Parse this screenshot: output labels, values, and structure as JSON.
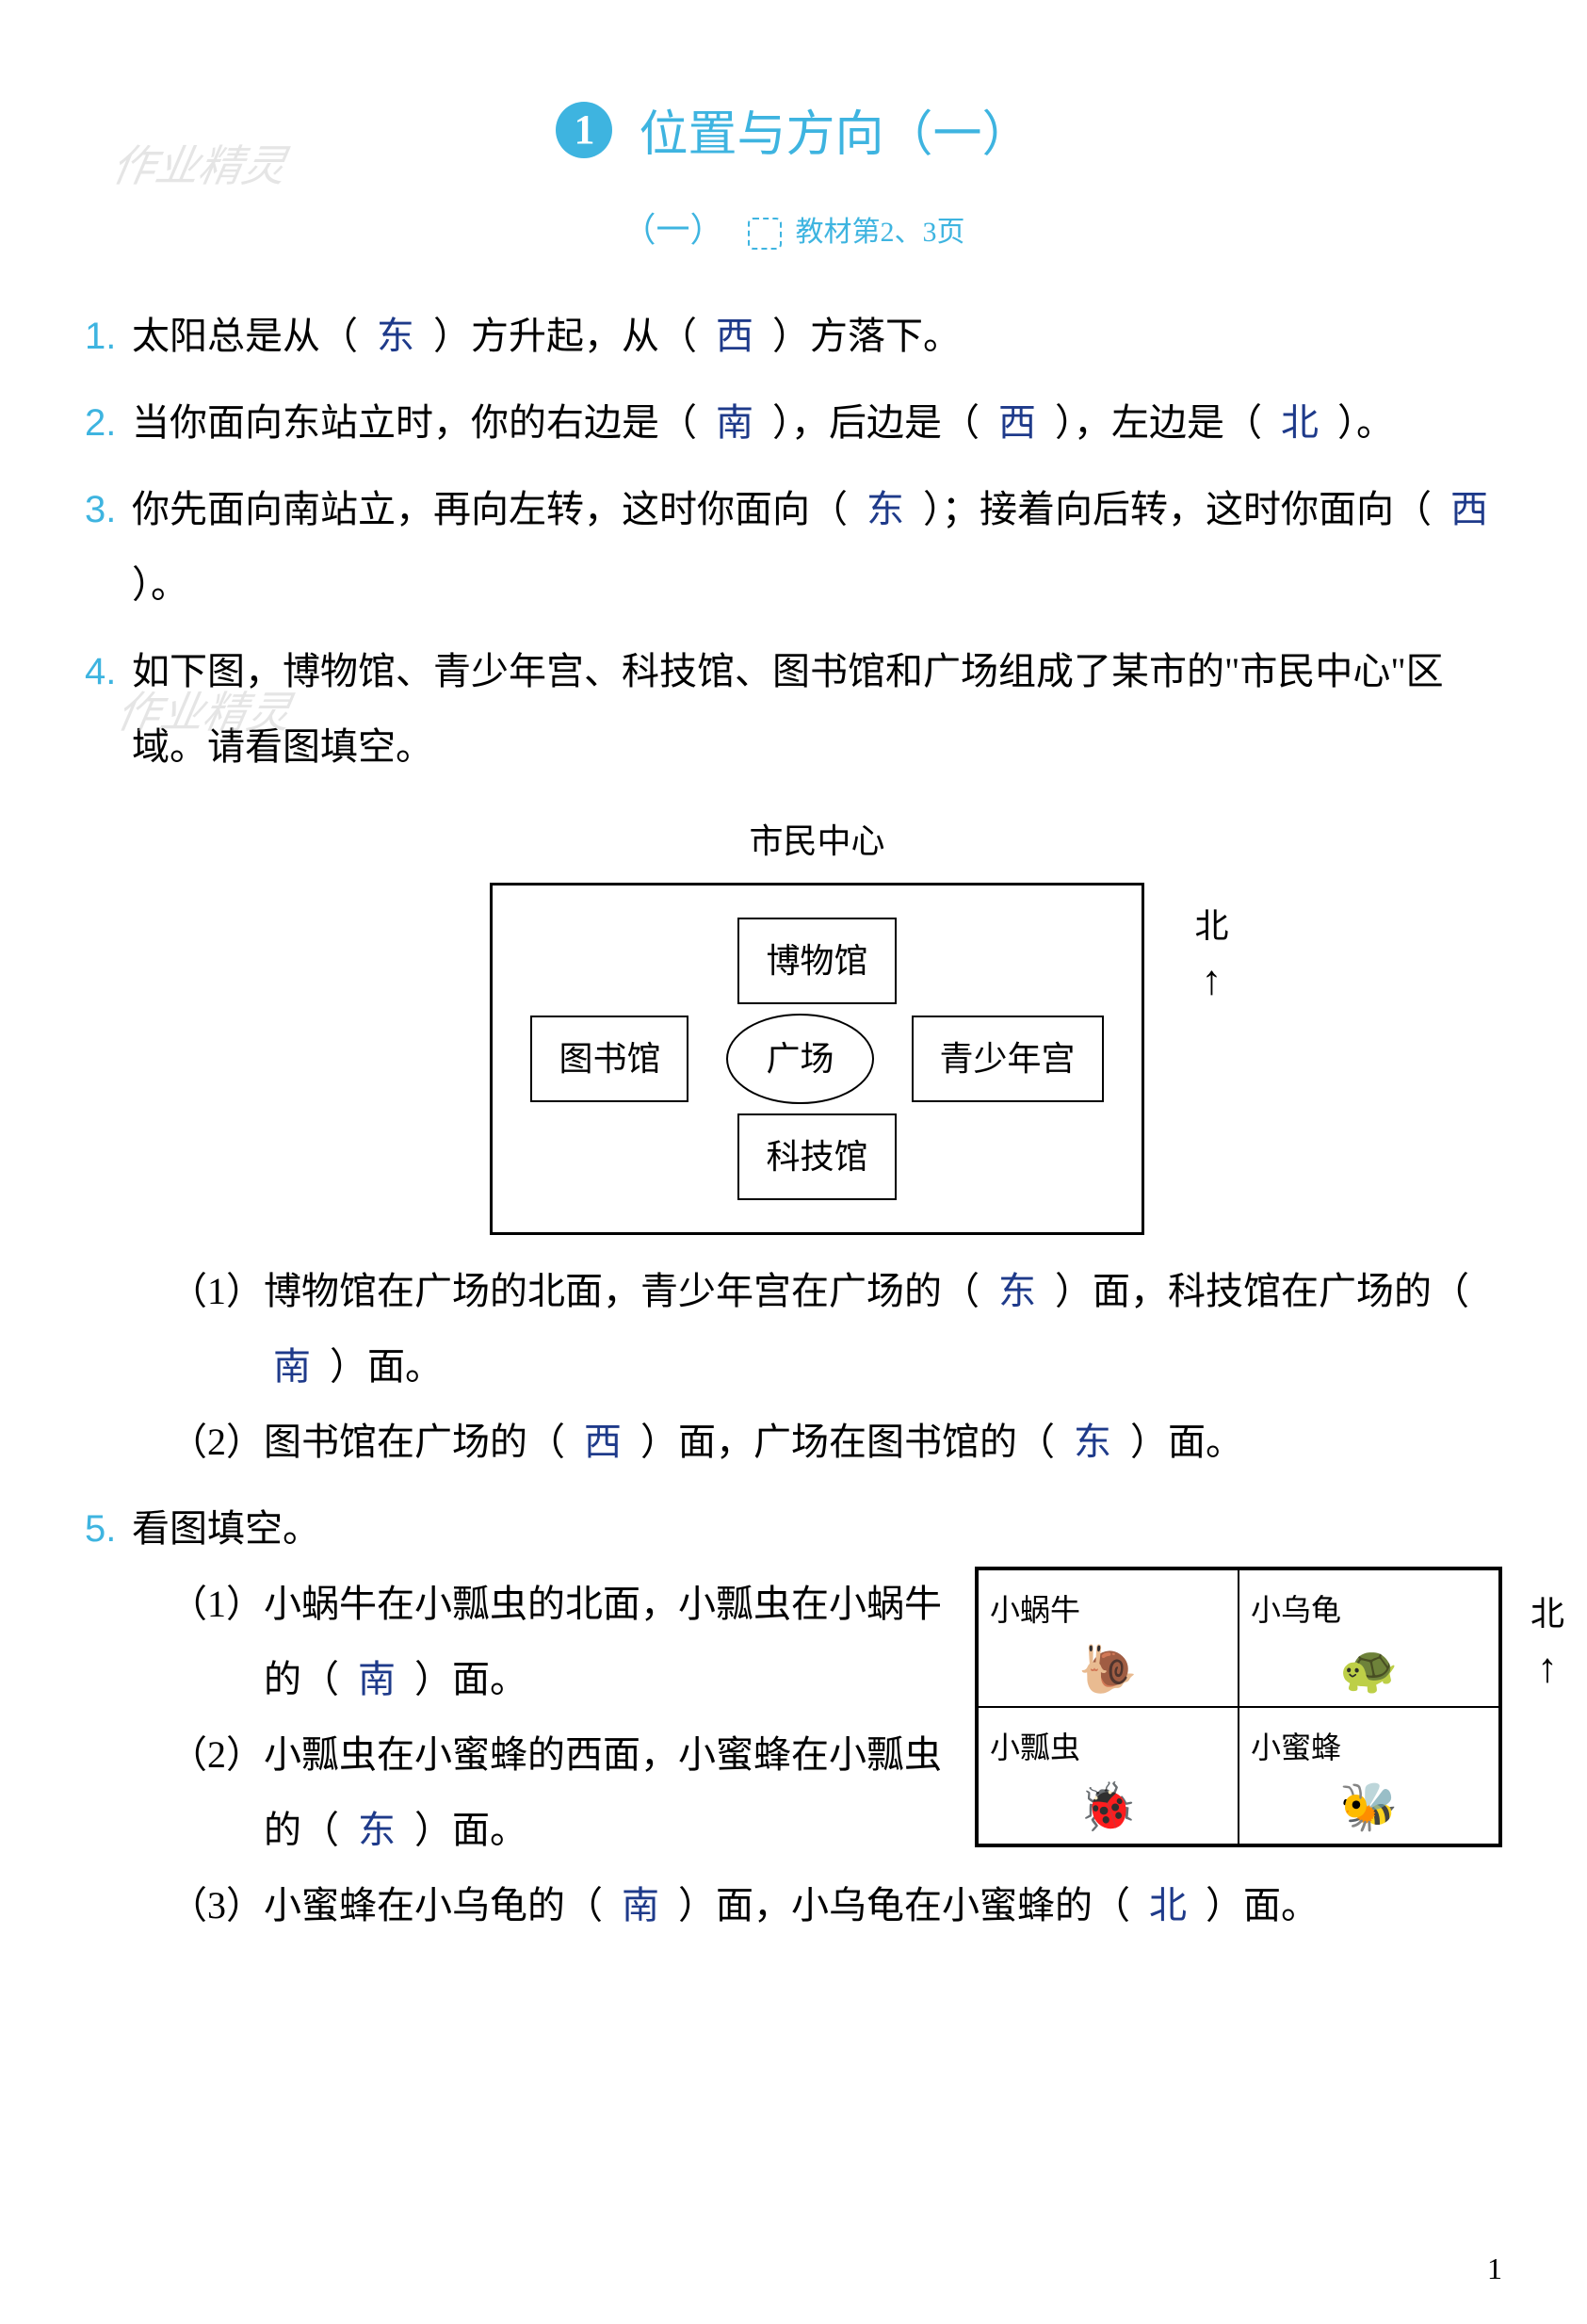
{
  "accent_color": "#3eb4e0",
  "answer_color": "#1e3a8a",
  "watermark_text": "作业精灵",
  "chapter": {
    "number": "1",
    "title": "位置与方向（一）"
  },
  "subtitle": {
    "num": "（一）",
    "page_ref": "教材第2、3页"
  },
  "q1": {
    "num": "1.",
    "t1": "太阳总是从（",
    "a1": "东",
    "t2": "）方升起，从（",
    "a2": "西",
    "t3": "）方落下。"
  },
  "q2": {
    "num": "2.",
    "t1": "当你面向东站立时，你的右边是（",
    "a1": "南",
    "t2": "），后边是（",
    "a2": "西",
    "t3": "），左边是（",
    "a3": "北",
    "t4": "）。"
  },
  "q3": {
    "num": "3.",
    "t1": "你先面向南站立，再向左转，这时你面向（",
    "a1": "东",
    "t2": "）；接着向后转，这时你面向（",
    "a2": "西",
    "t3": "）。"
  },
  "q4": {
    "num": "4.",
    "intro": "如下图，博物馆、青少年宫、科技馆、图书馆和广场组成了某市的\"市民中心\"区域。请看图填空。",
    "diagram": {
      "title": "市民中心",
      "north_label": "北",
      "top": "博物馆",
      "left": "图书馆",
      "center": "广场",
      "right": "青少年宫",
      "bottom": "科技馆"
    },
    "s1": {
      "num": "（1）",
      "t1": "博物馆在广场的北面，青少年宫在广场的（",
      "a1": "东",
      "t2": "）面，科技馆在广场的（",
      "a2": "南",
      "t3": "）面。"
    },
    "s2": {
      "num": "（2）",
      "t1": "图书馆在广场的（",
      "a1": "西",
      "t2": "）面，广场在图书馆的（",
      "a2": "东",
      "t3": "）面。"
    }
  },
  "q5": {
    "num": "5.",
    "intro": "看图填空。",
    "grid": {
      "north_label": "北",
      "tl": "小蜗牛",
      "tr": "小乌龟",
      "bl": "小瓢虫",
      "br": "小蜜蜂",
      "icon_tl": "🐌",
      "icon_tr": "🐢",
      "icon_bl": "🐞",
      "icon_br": "🐝"
    },
    "s1": {
      "num": "（1）",
      "t1": "小蜗牛在小瓢虫的北面，小瓢虫在小蜗牛的（",
      "a1": "南",
      "t2": "）面。"
    },
    "s2": {
      "num": "（2）",
      "t1": "小瓢虫在小蜜蜂的西面，小蜜蜂在小瓢虫的（",
      "a1": "东",
      "t2": "）面。"
    },
    "s3": {
      "num": "（3）",
      "t1": "小蜜蜂在小乌龟的（",
      "a1": "南",
      "t2": "）面，小乌龟在小蜜蜂的（",
      "a2": "北",
      "t3": "）面。"
    }
  },
  "page_number": "1"
}
